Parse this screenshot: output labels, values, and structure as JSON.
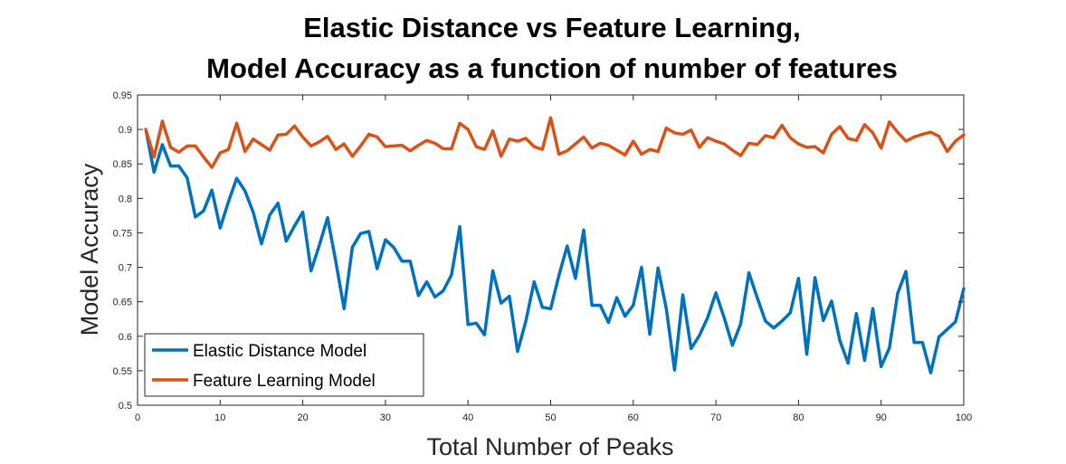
{
  "chart_data": {
    "type": "line",
    "title_lines": [
      "Elastic Distance vs Feature Learning,",
      "Model Accuracy as a function of number of features"
    ],
    "xlabel": "Total Number of Peaks",
    "ylabel": "Model Accuracy",
    "xlim": [
      0,
      100
    ],
    "ylim": [
      0.5,
      0.95
    ],
    "x_ticks": [
      0,
      10,
      20,
      30,
      40,
      50,
      60,
      70,
      80,
      90,
      100
    ],
    "y_ticks": [
      0.5,
      0.55,
      0.6,
      0.65,
      0.7,
      0.75,
      0.8,
      0.85,
      0.9,
      0.95
    ],
    "grid": false,
    "legend_position": "bottom-left",
    "series": [
      {
        "name": "Elastic Distance Model",
        "color": "#0072BD",
        "x": [
          1,
          2,
          3,
          4,
          5,
          6,
          7,
          8,
          9,
          10,
          11,
          12,
          13,
          14,
          15,
          16,
          17,
          18,
          19,
          20,
          21,
          22,
          23,
          24,
          25,
          26,
          27,
          28,
          29,
          30,
          31,
          32,
          33,
          34,
          35,
          36,
          37,
          38,
          39,
          40,
          41,
          42,
          43,
          44,
          45,
          46,
          47,
          48,
          49,
          50,
          51,
          52,
          53,
          54,
          55,
          56,
          57,
          58,
          59,
          60,
          61,
          62,
          63,
          64,
          65,
          66,
          67,
          68,
          69,
          70,
          71,
          72,
          73,
          74,
          75,
          76,
          77,
          78,
          79,
          80,
          81,
          82,
          83,
          84,
          85,
          86,
          87,
          88,
          89,
          90,
          91,
          92,
          93,
          94,
          95,
          96,
          97,
          98,
          99,
          100
        ],
        "values": [
          0.9,
          0.838,
          0.878,
          0.847,
          0.847,
          0.83,
          0.773,
          0.782,
          0.812,
          0.757,
          0.795,
          0.829,
          0.811,
          0.78,
          0.734,
          0.776,
          0.793,
          0.738,
          0.76,
          0.78,
          0.695,
          0.732,
          0.772,
          0.708,
          0.64,
          0.729,
          0.749,
          0.752,
          0.698,
          0.74,
          0.729,
          0.709,
          0.709,
          0.659,
          0.679,
          0.657,
          0.666,
          0.689,
          0.759,
          0.617,
          0.619,
          0.602,
          0.695,
          0.648,
          0.658,
          0.578,
          0.622,
          0.679,
          0.642,
          0.64,
          0.688,
          0.731,
          0.684,
          0.754,
          0.645,
          0.645,
          0.62,
          0.656,
          0.629,
          0.645,
          0.7,
          0.603,
          0.699,
          0.64,
          0.551,
          0.66,
          0.582,
          0.601,
          0.627,
          0.663,
          0.627,
          0.587,
          0.618,
          0.692,
          0.656,
          0.622,
          0.612,
          0.622,
          0.634,
          0.684,
          0.574,
          0.685,
          0.623,
          0.651,
          0.594,
          0.561,
          0.633,
          0.565,
          0.64,
          0.556,
          0.583,
          0.662,
          0.694,
          0.591,
          0.591,
          0.547,
          0.599,
          0.61,
          0.621,
          0.669
        ]
      },
      {
        "name": "Feature Learning Model",
        "color": "#D95319",
        "x": [
          1,
          2,
          3,
          4,
          5,
          6,
          7,
          8,
          9,
          10,
          11,
          12,
          13,
          14,
          15,
          16,
          17,
          18,
          19,
          20,
          21,
          22,
          23,
          24,
          25,
          26,
          27,
          28,
          29,
          30,
          31,
          32,
          33,
          34,
          35,
          36,
          37,
          38,
          39,
          40,
          41,
          42,
          43,
          44,
          45,
          46,
          47,
          48,
          49,
          50,
          51,
          52,
          53,
          54,
          55,
          56,
          57,
          58,
          59,
          60,
          61,
          62,
          63,
          64,
          65,
          66,
          67,
          68,
          69,
          70,
          71,
          72,
          73,
          74,
          75,
          76,
          77,
          78,
          79,
          80,
          81,
          82,
          83,
          84,
          85,
          86,
          87,
          88,
          89,
          90,
          91,
          92,
          93,
          94,
          95,
          96,
          97,
          98,
          99,
          100
        ],
        "values": [
          0.9,
          0.86,
          0.912,
          0.874,
          0.867,
          0.876,
          0.876,
          0.86,
          0.845,
          0.866,
          0.871,
          0.909,
          0.868,
          0.886,
          0.878,
          0.87,
          0.892,
          0.893,
          0.905,
          0.889,
          0.876,
          0.882,
          0.89,
          0.871,
          0.879,
          0.861,
          0.876,
          0.893,
          0.889,
          0.875,
          0.876,
          0.877,
          0.869,
          0.877,
          0.884,
          0.88,
          0.872,
          0.872,
          0.909,
          0.9,
          0.875,
          0.871,
          0.898,
          0.861,
          0.886,
          0.883,
          0.887,
          0.875,
          0.871,
          0.917,
          0.864,
          0.869,
          0.879,
          0.889,
          0.873,
          0.88,
          0.877,
          0.87,
          0.863,
          0.883,
          0.864,
          0.871,
          0.868,
          0.902,
          0.895,
          0.893,
          0.899,
          0.874,
          0.888,
          0.883,
          0.879,
          0.87,
          0.862,
          0.88,
          0.878,
          0.891,
          0.888,
          0.906,
          0.888,
          0.879,
          0.874,
          0.875,
          0.866,
          0.893,
          0.904,
          0.887,
          0.884,
          0.907,
          0.895,
          0.873,
          0.911,
          0.896,
          0.883,
          0.889,
          0.893,
          0.896,
          0.89,
          0.868,
          0.883,
          0.892
        ]
      }
    ]
  }
}
